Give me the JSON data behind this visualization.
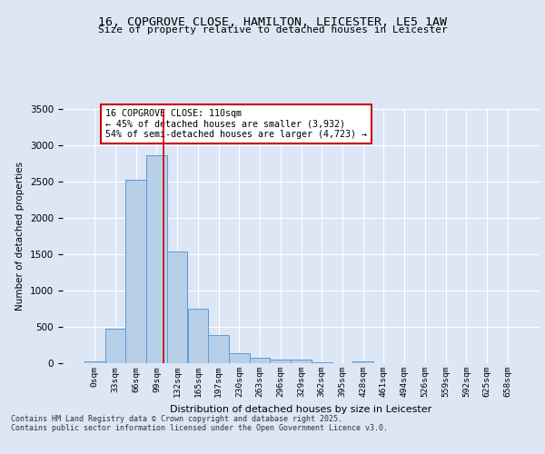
{
  "title1": "16, COPGROVE CLOSE, HAMILTON, LEICESTER, LE5 1AW",
  "title2": "Size of property relative to detached houses in Leicester",
  "xlabel": "Distribution of detached houses by size in Leicester",
  "ylabel": "Number of detached properties",
  "bin_labels": [
    "0sqm",
    "33sqm",
    "66sqm",
    "99sqm",
    "132sqm",
    "165sqm",
    "197sqm",
    "230sqm",
    "263sqm",
    "296sqm",
    "329sqm",
    "362sqm",
    "395sqm",
    "428sqm",
    "461sqm",
    "494sqm",
    "526sqm",
    "559sqm",
    "592sqm",
    "625sqm",
    "658sqm"
  ],
  "bar_heights": [
    20,
    480,
    2520,
    2860,
    1540,
    750,
    390,
    140,
    75,
    55,
    55,
    10,
    0,
    30,
    5,
    5,
    0,
    0,
    0,
    0,
    0
  ],
  "bar_color": "#b8cfe8",
  "bar_edge_color": "#5b9bd5",
  "background_color": "#dce6f5",
  "grid_color": "#ffffff",
  "red_line_x": 3.33,
  "annotation_text": "16 COPGROVE CLOSE: 110sqm\n← 45% of detached houses are smaller (3,932)\n54% of semi-detached houses are larger (4,723) →",
  "annotation_box_facecolor": "#ffffff",
  "annotation_box_edgecolor": "#cc0000",
  "ylim": [
    0,
    3500
  ],
  "yticks": [
    0,
    500,
    1000,
    1500,
    2000,
    2500,
    3000,
    3500
  ],
  "fig_facecolor": "#dce6f5",
  "footer_line1": "Contains HM Land Registry data © Crown copyright and database right 2025.",
  "footer_line2": "Contains public sector information licensed under the Open Government Licence v3.0."
}
